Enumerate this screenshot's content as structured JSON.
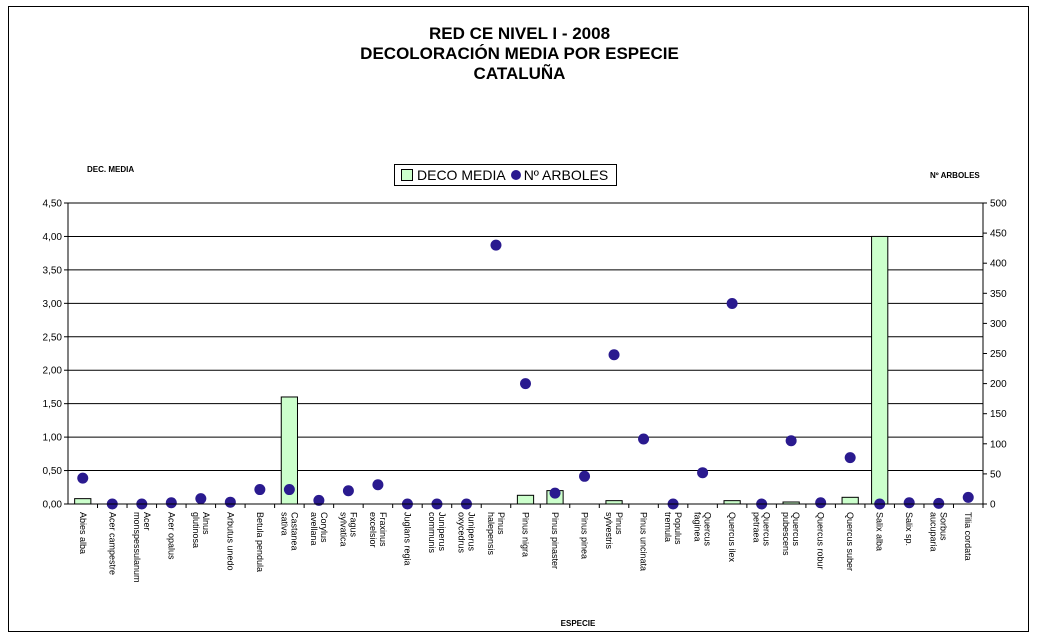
{
  "title_lines": [
    "RED CE NIVEL I - 2008",
    "DECOLORACIÓN MEDIA POR ESPECIE",
    "CATALUÑA"
  ],
  "legend": {
    "bar_label": "DECO MEDIA",
    "dot_label": "Nº ARBOLES"
  },
  "colors": {
    "bar_fill": "#ccffcc",
    "dot_fill": "#2a1a8f",
    "grid": "#000000"
  },
  "chart_data": {
    "type": "bar",
    "xlabel": "ESPECIE",
    "ylabel": "DEC. MEDIA",
    "y2label": "Nº ARBOLES",
    "ylim": [
      0,
      4.5
    ],
    "y2lim": [
      0,
      500
    ],
    "yticks": [
      "0,00",
      "0,50",
      "1,00",
      "1,50",
      "2,00",
      "2,50",
      "3,00",
      "3,50",
      "4,00",
      "4,50"
    ],
    "y2ticks": [
      "0",
      "50",
      "100",
      "150",
      "200",
      "250",
      "300",
      "350",
      "400",
      "450",
      "500"
    ],
    "grid": true,
    "legend_position": "top-center",
    "categories": [
      "Abies alba",
      "Acer campestre",
      "Acer monspessulanum",
      "Acer opalus",
      "Alnus glutinosa",
      "Arbutus unedo",
      "Betula pendula",
      "Castanea sativa",
      "Corylus avellana",
      "Fagus sylvatica",
      "Fraxinus excelsior",
      "Juglans regia",
      "Juniperus communis",
      "Juniperus oxycedrus",
      "Pinus halepensis",
      "Pinus nigra",
      "Pinus pinaster",
      "Pinus pinea",
      "Pinus sylvestris",
      "Pinus uncinata",
      "Populus tremula",
      "Quercus faginea",
      "Quercus ilex",
      "Quercus petraea",
      "Quercus pubescens",
      "Quercus robur",
      "Quercus suber",
      "Salix alba",
      "Salix sp.",
      "Sorbus aucuparia",
      "Tilia cordata"
    ],
    "series": [
      {
        "name": "DECO MEDIA",
        "type": "bar",
        "values": [
          0.08,
          0,
          0,
          0,
          0,
          0,
          0,
          1.6,
          0,
          0,
          0,
          0,
          0,
          0,
          0,
          0.13,
          0.2,
          0,
          0.05,
          0,
          0,
          0,
          0.05,
          0,
          0.03,
          0,
          0.1,
          4.0,
          0,
          0,
          0
        ]
      },
      {
        "name": "Nº ARBOLES",
        "type": "scatter",
        "values": [
          43,
          0,
          0,
          2,
          9,
          3,
          24,
          24,
          6,
          22,
          32,
          0,
          0,
          0,
          430,
          200,
          18,
          46,
          248,
          108,
          0,
          52,
          333,
          0,
          105,
          2,
          77,
          0,
          2,
          1,
          11
        ]
      }
    ]
  }
}
